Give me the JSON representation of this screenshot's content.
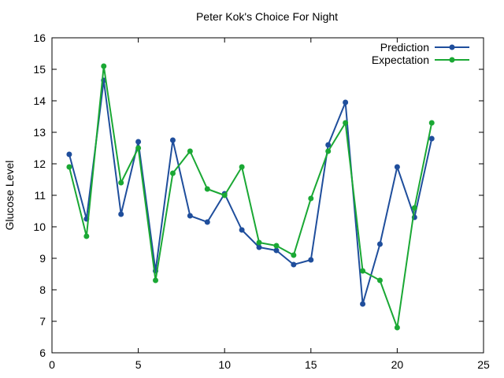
{
  "chart_data": {
    "type": "line",
    "title": "Peter Kok's Choice For Night",
    "xlabel": "",
    "ylabel": "Glucose Level",
    "xlim": [
      0,
      25
    ],
    "ylim": [
      6,
      16
    ],
    "xticks": [
      0,
      5,
      10,
      15,
      20,
      25
    ],
    "yticks": [
      6,
      7,
      8,
      9,
      10,
      11,
      12,
      13,
      14,
      15,
      16
    ],
    "grid": false,
    "legend_position": "top-right",
    "x": [
      1,
      2,
      3,
      4,
      5,
      6,
      7,
      8,
      9,
      10,
      11,
      12,
      13,
      14,
      15,
      16,
      17,
      18,
      19,
      20,
      21,
      22
    ],
    "series": [
      {
        "name": "Prediction",
        "color": "#1f4e9c",
        "values": [
          12.3,
          10.25,
          14.65,
          10.4,
          12.7,
          8.6,
          12.75,
          10.35,
          10.15,
          11.05,
          9.9,
          9.35,
          9.25,
          8.8,
          8.95,
          12.6,
          13.95,
          7.55,
          9.45,
          11.9,
          10.3,
          12.8
        ]
      },
      {
        "name": "Expectation",
        "color": "#1aa834",
        "values": [
          11.9,
          9.7,
          15.1,
          11.4,
          12.5,
          8.3,
          11.7,
          12.4,
          11.2,
          11.0,
          11.9,
          9.5,
          9.4,
          9.1,
          10.9,
          12.4,
          13.3,
          8.6,
          8.3,
          6.8,
          10.6,
          13.3
        ]
      }
    ]
  }
}
